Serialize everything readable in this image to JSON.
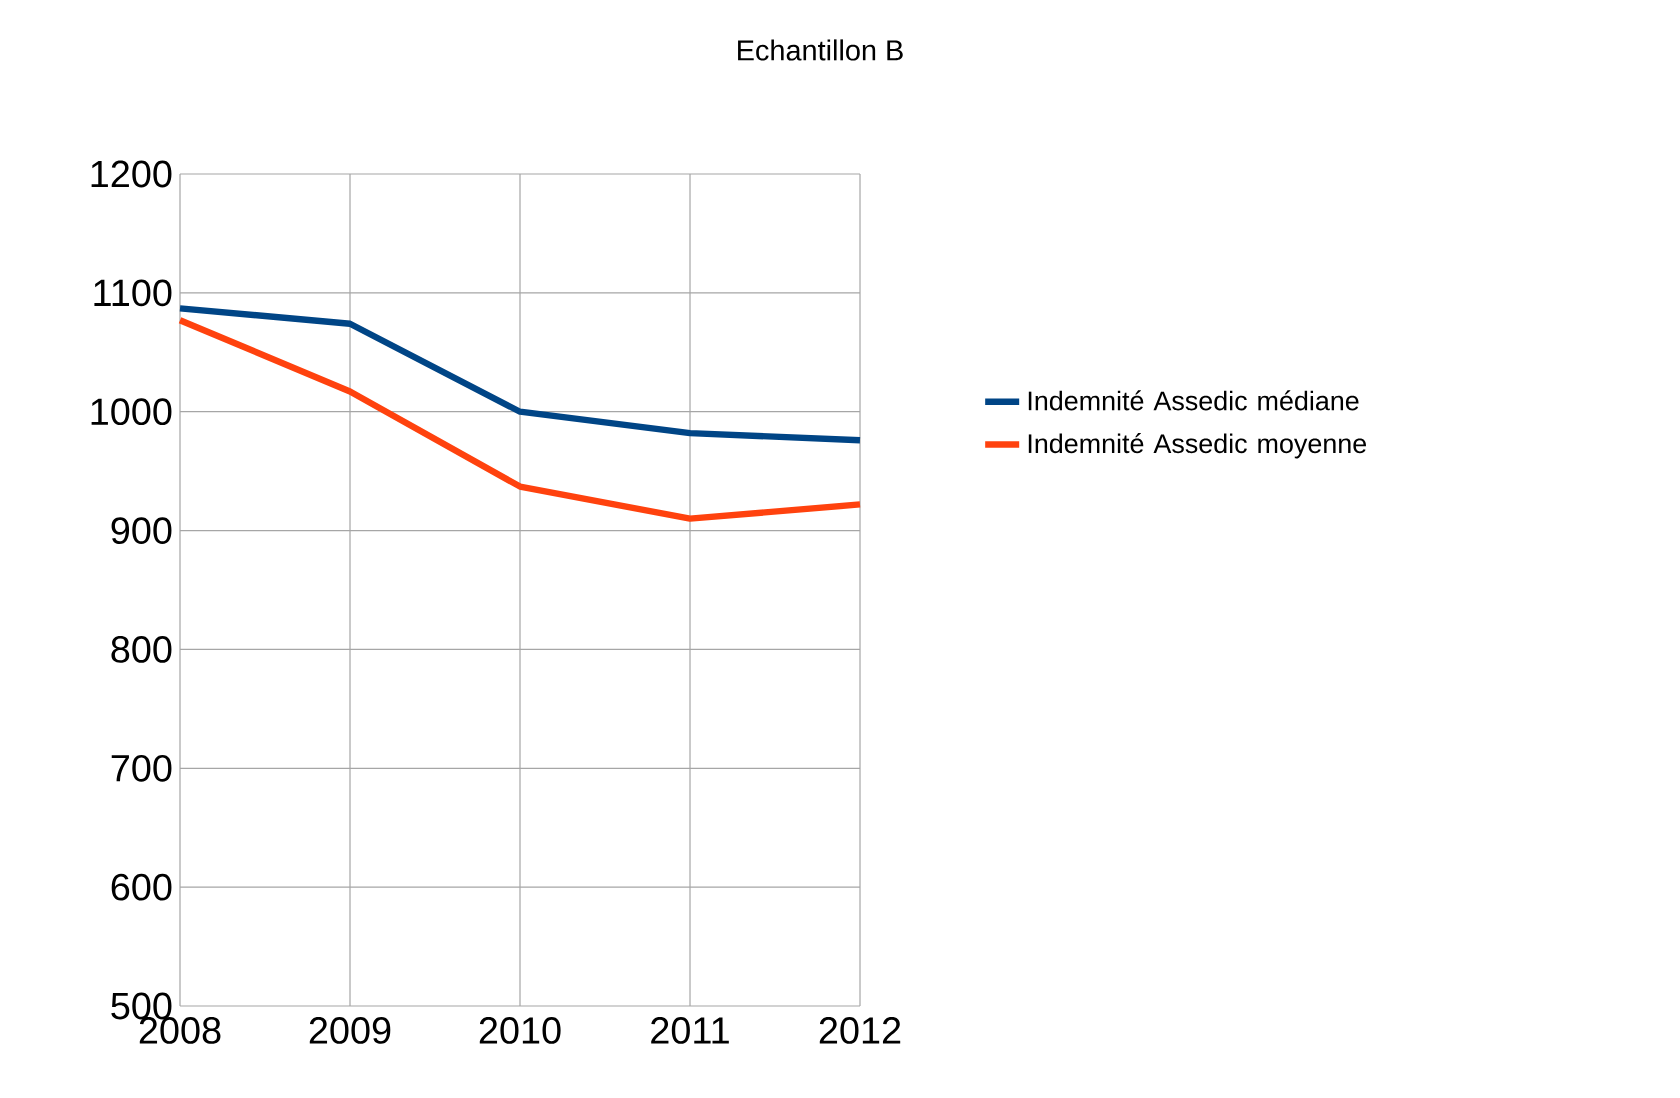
{
  "chart_data": {
    "type": "line",
    "title": "Echantillon B",
    "x": [
      2008,
      2009,
      2010,
      2011,
      2012
    ],
    "series": [
      {
        "name": "Indemnité Assedic médiane",
        "color": "#004586",
        "values": [
          1087,
          1074,
          1000,
          982,
          976
        ]
      },
      {
        "name": "Indemnité Assedic moyenne",
        "color": "#ff420e",
        "values": [
          1077,
          1017,
          937,
          910,
          922
        ]
      }
    ],
    "xlim": [
      2008,
      2012
    ],
    "xticks": [
      2008,
      2009,
      2010,
      2011,
      2012
    ],
    "ylim": [
      500,
      1200
    ],
    "yticks": [
      500,
      600,
      700,
      800,
      900,
      1000,
      1100,
      1200
    ],
    "grid": true,
    "legend": "right",
    "marker": "none",
    "line_style": "solid"
  }
}
